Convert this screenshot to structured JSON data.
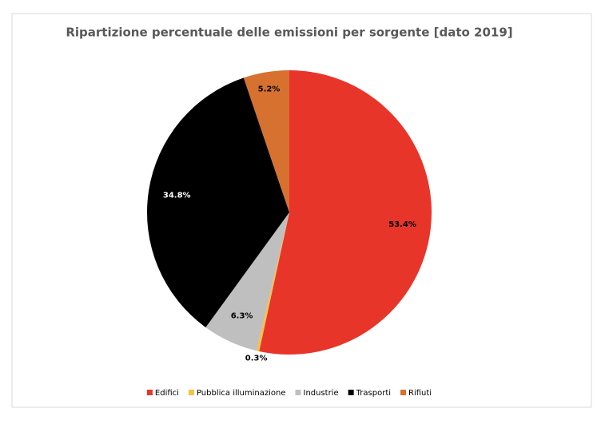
{
  "chart_data": {
    "type": "pie",
    "title": "Ripartizione percentuale delle emissioni per sorgente [dato 2019]",
    "categories": [
      "Edifici",
      "Pubblica illuminazione",
      "Industrie",
      "Trasporti",
      "Rifiuti"
    ],
    "values": [
      53.4,
      0.3,
      6.3,
      34.8,
      5.2
    ],
    "value_labels": [
      "53.4%",
      "0.3%",
      "6.3%",
      "34.8%",
      "5.2%"
    ],
    "colors": [
      "#e8352a",
      "#f5c242",
      "#bfbfbf",
      "#000000",
      "#d7712f"
    ],
    "legend": "bottom"
  }
}
